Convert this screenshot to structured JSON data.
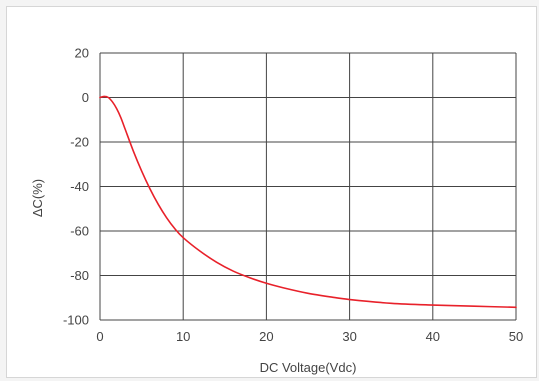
{
  "chart_data": {
    "type": "line",
    "title": "",
    "xlabel": "DC Voltage(Vdc)",
    "ylabel": "ΔC(%)",
    "xlim": [
      0,
      50
    ],
    "ylim": [
      -100,
      20
    ],
    "x_ticks": [
      0,
      10,
      20,
      30,
      40,
      50
    ],
    "y_ticks": [
      20,
      0,
      -20,
      -40,
      -60,
      -80,
      -100
    ],
    "x_tick_labels": [
      "0",
      "10",
      "20",
      "30",
      "40",
      "50"
    ],
    "y_tick_labels": [
      "20",
      "0",
      "-20",
      "-40",
      "-60",
      "-80",
      "-100"
    ],
    "grid": true,
    "series": [
      {
        "color": "#e8212a",
        "x": [
          0,
          0.5,
          1,
          1.5,
          2,
          2.5,
          3,
          4,
          5,
          6,
          7,
          8,
          9,
          10,
          12,
          14,
          16,
          18,
          20,
          22,
          25,
          28,
          30,
          35,
          40,
          45,
          50
        ],
        "y": [
          0,
          0.5,
          0,
          -2,
          -5,
          -9,
          -14,
          -24,
          -33,
          -41,
          -48,
          -54,
          -59,
          -63,
          -69,
          -74,
          -78,
          -81,
          -83.5,
          -85.5,
          -88,
          -89.8,
          -90.8,
          -92.5,
          -93.3,
          -93.8,
          -94.3
        ]
      }
    ]
  }
}
